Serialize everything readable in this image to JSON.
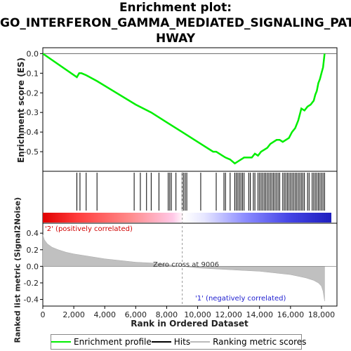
{
  "title_lines": [
    "Enrichment plot:",
    "GO_INTERFERON_GAMMA_MEDIATED_SIGNALING_PAT",
    "HWAY"
  ],
  "chart_data": {
    "type": "line",
    "es_panel": {
      "ylabel": "Enrichment score (ES)",
      "ylim": [
        -0.6,
        0.03
      ],
      "yticks": [
        0.0,
        -0.1,
        -0.2,
        -0.3,
        -0.4,
        -0.5
      ],
      "ytick_labels": [
        "0.0",
        "-0.1",
        "-0.2",
        "-0.3",
        "-0.4",
        "-0.5"
      ],
      "series": [
        {
          "name": "Enrichment profile",
          "color": "#00ee00",
          "x": [
            0,
            2200,
            2350,
            2500,
            2800,
            3500,
            6000,
            7000,
            8000,
            9000,
            10000,
            11000,
            11200,
            11600,
            11800,
            12100,
            12400,
            12600,
            12800,
            13000,
            13300,
            13500,
            13700,
            13900,
            14100,
            14300,
            14500,
            14700,
            14900,
            15100,
            15300,
            15500,
            15700,
            15900,
            16100,
            16300,
            16500,
            16700,
            16900,
            17100,
            17300,
            17500,
            17600,
            17700,
            17800,
            17900,
            18000,
            18100,
            18200
          ],
          "y": [
            0.0,
            -0.12,
            -0.1,
            -0.1,
            -0.11,
            -0.14,
            -0.26,
            -0.3,
            -0.35,
            -0.4,
            -0.45,
            -0.5,
            -0.5,
            -0.52,
            -0.53,
            -0.54,
            -0.56,
            -0.55,
            -0.54,
            -0.53,
            -0.53,
            -0.53,
            -0.51,
            -0.52,
            -0.5,
            -0.49,
            -0.48,
            -0.46,
            -0.45,
            -0.44,
            -0.44,
            -0.45,
            -0.44,
            -0.43,
            -0.4,
            -0.38,
            -0.34,
            -0.28,
            -0.29,
            -0.27,
            -0.26,
            -0.24,
            -0.21,
            -0.19,
            -0.15,
            -0.13,
            -0.1,
            -0.07,
            0.0
          ]
        }
      ]
    },
    "hits_panel": {
      "hit_ranks": [
        2200,
        2400,
        2800,
        3500,
        5900,
        6300,
        6700,
        7000,
        7500,
        8100,
        8200,
        8300,
        8600,
        9000,
        9100,
        9200,
        9300,
        10200,
        11200,
        11700,
        11800,
        12100,
        12400,
        12500,
        12600,
        12700,
        12800,
        12900,
        13000,
        13300,
        13400,
        13600,
        13700,
        13900,
        14000,
        14100,
        14200,
        14300,
        14400,
        14500,
        14600,
        14700,
        14800,
        14900,
        15000,
        15100,
        15200,
        15300,
        15500,
        15600,
        15700,
        15800,
        15900,
        16000,
        16100,
        16200,
        16300,
        16400,
        16500,
        16600,
        16700,
        16800,
        16900,
        17100,
        17200,
        17400,
        17500,
        17600,
        17700,
        17800,
        17900,
        18000,
        18100,
        18200
      ]
    },
    "metric_panel": {
      "ylabel": "Ranked list metric (Signal2Noise)",
      "xlabel": "Rank in Ordered Dataset",
      "ylim": [
        -0.48,
        0.52
      ],
      "yticks": [
        0.4,
        0.2,
        0.0,
        -0.2,
        -0.4
      ],
      "ytick_labels": [
        "0.4",
        "0.2",
        "0.0",
        "-0.2",
        "-0.4"
      ],
      "xlim": [
        0,
        19000
      ],
      "xticks": [
        0,
        2000,
        4000,
        6000,
        8000,
        10000,
        12000,
        14000,
        16000,
        18000
      ],
      "xtick_labels": [
        "0",
        "2,000",
        "4,000",
        "6,000",
        "8,000",
        "10,000",
        "12,000",
        "14,000",
        "16,000",
        "18,000"
      ],
      "x": [
        0,
        100,
        300,
        600,
        1000,
        1500,
        2000,
        3000,
        4000,
        5000,
        6000,
        7000,
        8000,
        9006,
        10000,
        11000,
        12000,
        13000,
        14000,
        15000,
        16000,
        16500,
        17000,
        17500,
        17800,
        18000,
        18100,
        18200
      ],
      "values": [
        0.38,
        0.32,
        0.27,
        0.23,
        0.2,
        0.17,
        0.15,
        0.12,
        0.09,
        0.07,
        0.05,
        0.04,
        0.02,
        0.0,
        -0.02,
        -0.03,
        -0.04,
        -0.05,
        -0.06,
        -0.08,
        -0.1,
        -0.12,
        -0.14,
        -0.17,
        -0.2,
        -0.24,
        -0.3,
        -0.42
      ],
      "zero_cross_rank": 9006,
      "annotations": {
        "zero_cross": "Zero cross at 9006",
        "positive": "'2' (positively correlated)",
        "negative": "'1' (negatively correlated)"
      },
      "positive_color": "#ff0000",
      "negative_color": "#0000ff"
    },
    "legend": [
      "Enrichment profile",
      "Hits",
      "Ranking metric scores"
    ]
  }
}
